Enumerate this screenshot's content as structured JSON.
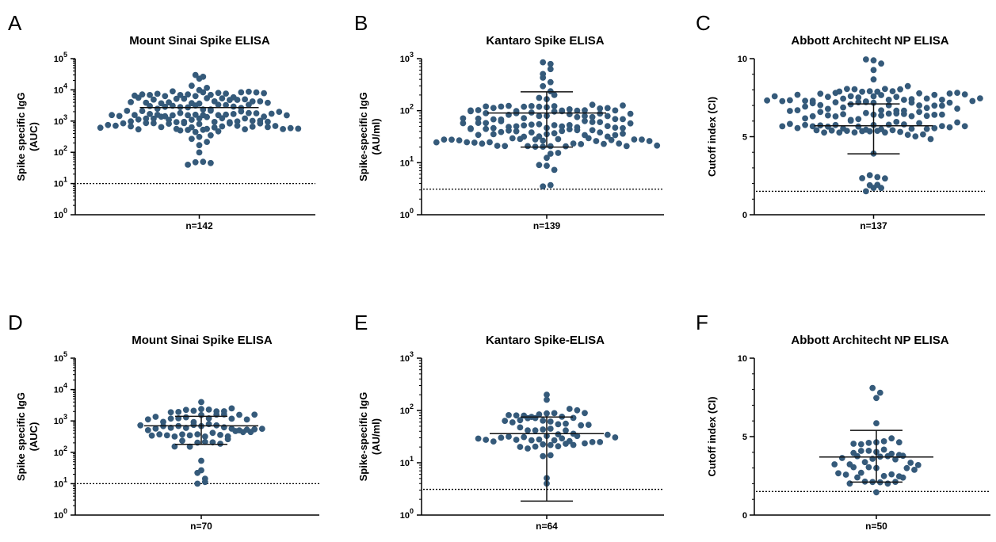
{
  "colors": {
    "dot": "#355a7a",
    "axis": "#000000"
  },
  "chart_data": [
    {
      "letter": "A",
      "type": "scatter",
      "title": "Mount Sinai Spike ELISA",
      "ylabel": [
        "Spike specific IgG",
        "(AUC)"
      ],
      "scale": "log",
      "ylim": [
        1,
        100000
      ],
      "ticks": [
        1,
        10,
        100,
        1000,
        10000,
        100000
      ],
      "tick_labels": [
        [
          "10",
          "0"
        ],
        [
          "10",
          "1"
        ],
        [
          "10",
          "2"
        ],
        [
          "10",
          "3"
        ],
        [
          "10",
          "4"
        ],
        [
          "10",
          "5"
        ]
      ],
      "n_label": "n=142",
      "n": 142,
      "cutoff": 10,
      "median": 2700,
      "q1": null,
      "q3": null,
      "value_range": [
        40,
        30000
      ],
      "rows": 14,
      "dense_low": 500,
      "dense_high": 9000
    },
    {
      "letter": "B",
      "type": "scatter",
      "title": "Kantaro Spike ELISA",
      "ylabel": [
        "Spike-specific IgG",
        "(AU/ml)"
      ],
      "scale": "log",
      "ylim": [
        1,
        1000
      ],
      "ticks": [
        1,
        10,
        100,
        1000
      ],
      "tick_labels": [
        [
          "10",
          "0"
        ],
        [
          "10",
          "1"
        ],
        [
          "10",
          "2"
        ],
        [
          "10",
          "3"
        ]
      ],
      "n_label": "n=139",
      "n": 139,
      "cutoff": 3.1,
      "median": 90,
      "q1": 20,
      "q3": 230,
      "value_range": [
        3.5,
        850
      ],
      "rows": 14,
      "dense_low": 20,
      "dense_high": 130
    },
    {
      "letter": "C",
      "type": "scatter",
      "title": "Abbott Architecht NP ELISA",
      "ylabel": [
        "Cutoff index (CI)"
      ],
      "scale": "linear",
      "ylim": [
        0,
        10
      ],
      "ticks": [
        0,
        5,
        10
      ],
      "tick_labels": [
        [
          "0",
          ""
        ],
        [
          "5",
          ""
        ],
        [
          "10",
          ""
        ]
      ],
      "n_label": "n=137",
      "n": 137,
      "cutoff": 1.5,
      "median": 5.7,
      "q1": 3.9,
      "q3": 7.1,
      "value_range": [
        1.5,
        9.95
      ],
      "rows": 14,
      "dense_low": 5.2,
      "dense_high": 8.1
    },
    {
      "letter": "D",
      "type": "scatter",
      "title": "Mount Sinai Spike ELISA",
      "ylabel": [
        "Spike specific IgG",
        "(AUC)"
      ],
      "scale": "log",
      "ylim": [
        1,
        100000
      ],
      "ticks": [
        1,
        10,
        100,
        1000,
        10000,
        100000
      ],
      "tick_labels": [
        [
          "10",
          "0"
        ],
        [
          "10",
          "1"
        ],
        [
          "10",
          "2"
        ],
        [
          "10",
          "3"
        ],
        [
          "10",
          "4"
        ],
        [
          "10",
          "5"
        ]
      ],
      "n_label": "n=70",
      "n": 70,
      "cutoff": 10,
      "median": 700,
      "q1": 180,
      "q3": 1400,
      "value_range": [
        10,
        4000
      ],
      "rows": 10,
      "dense_low": 150,
      "dense_high": 2500
    },
    {
      "letter": "E",
      "type": "scatter",
      "title": "Kantaro Spike-ELISA",
      "ylabel": [
        "Spike-specific IgG",
        "(AU/ml)"
      ],
      "scale": "log",
      "ylim": [
        1,
        1000
      ],
      "ticks": [
        1,
        10,
        100,
        1000
      ],
      "tick_labels": [
        [
          "10",
          "0"
        ],
        [
          "10",
          "1"
        ],
        [
          "10",
          "2"
        ],
        [
          "10",
          "3"
        ]
      ],
      "n_label": "n=64",
      "n": 64,
      "cutoff": 3.1,
      "median": 36,
      "q1": 1.85,
      "q3": 75,
      "value_range": [
        4,
        200
      ],
      "rows": 10,
      "dense_low": 18,
      "dense_high": 90
    },
    {
      "letter": "F",
      "type": "scatter",
      "title": "Abbott Architecht NP ELISA",
      "ylabel": [
        "Cutoff index (CI)"
      ],
      "scale": "linear",
      "ylim": [
        0,
        10
      ],
      "ticks": [
        0,
        5,
        10
      ],
      "tick_labels": [
        [
          "0",
          ""
        ],
        [
          "5",
          ""
        ],
        [
          "10",
          ""
        ]
      ],
      "n_label": "n=50",
      "n": 50,
      "cutoff": 1.5,
      "median": 3.7,
      "q1": 2.1,
      "q3": 5.4,
      "value_range": [
        1.45,
        8.1
      ],
      "rows": 10,
      "dense_low": 2.0,
      "dense_high": 4.8
    }
  ]
}
